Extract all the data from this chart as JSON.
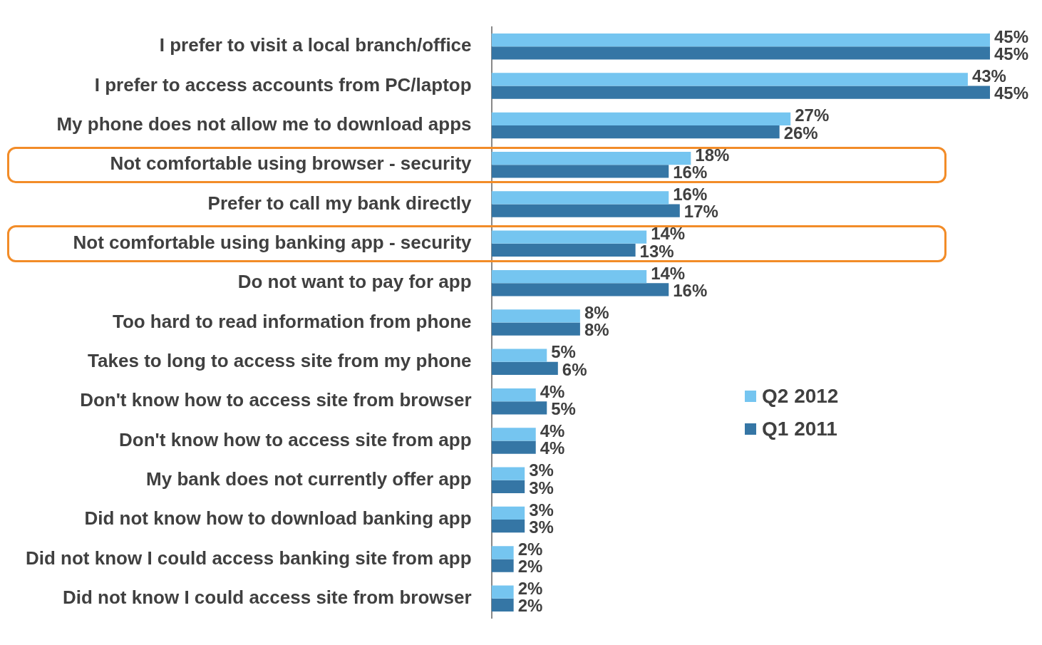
{
  "chart_data": {
    "type": "bar",
    "orientation": "horizontal",
    "legend": "right",
    "grid": false,
    "categories": [
      "I prefer to visit a local branch/office",
      "I prefer to access accounts from PC/laptop",
      "My phone does not allow me to download apps",
      "Not comfortable using browser - security",
      "Prefer to call my bank directly",
      "Not comfortable using banking app - security",
      "Do not want to pay for app",
      "Too hard to read information from phone",
      "Takes to long to access site from my phone",
      "Don't know how to access site from browser",
      "Don't know how to access site from app",
      "My bank does not currently offer app",
      "Did not know how to download banking app",
      "Did not know I could access banking site from app",
      "Did not know I could access site from browser"
    ],
    "series": [
      {
        "name": "Q2 2012",
        "color": "#75c5f0",
        "values": [
          45,
          43,
          27,
          18,
          16,
          14,
          14,
          8,
          5,
          4,
          4,
          3,
          3,
          2,
          2
        ],
        "value_labels": [
          "45%",
          "43%",
          "27%",
          "18%",
          "16%",
          "14%",
          "14%",
          "8%",
          "5%",
          "4%",
          "4%",
          "3%",
          "3%",
          "2%",
          "2%"
        ]
      },
      {
        "name": "Q1 2011",
        "color": "#3576a5",
        "values": [
          45,
          45,
          26,
          16,
          17,
          13,
          16,
          8,
          6,
          5,
          4,
          3,
          3,
          2,
          2
        ],
        "value_labels": [
          "45%",
          "45%",
          "26%",
          "16%",
          "17%",
          "13%",
          "16%",
          "8%",
          "6%",
          "5%",
          "4%",
          "3%",
          "3%",
          "2%",
          "2%"
        ]
      }
    ]
  }
}
